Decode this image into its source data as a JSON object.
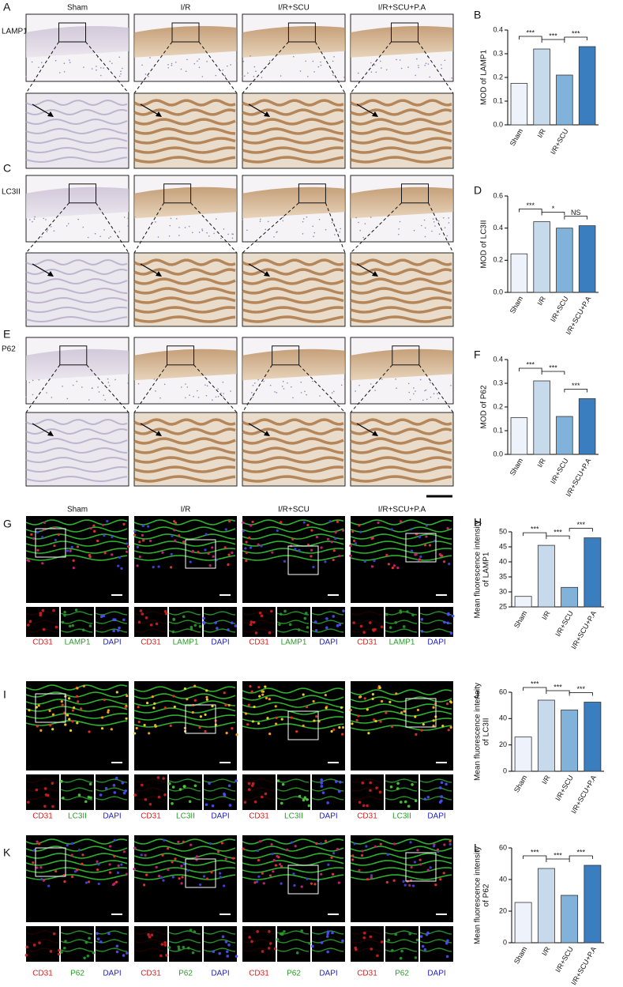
{
  "panels": [
    "A",
    "B",
    "C",
    "D",
    "E",
    "F",
    "G",
    "H",
    "I",
    "J",
    "K",
    "L"
  ],
  "groups": [
    "Sham",
    "I/R",
    "I/R+SCU",
    "I/R+SCU+P.A"
  ],
  "markers": [
    "LAMP1",
    "LC3II",
    "P62"
  ],
  "channels": [
    [
      "CD31",
      "LAMP1",
      "DAPI"
    ],
    [
      "CD31",
      "LC3II",
      "DAPI"
    ],
    [
      "CD31",
      "P62",
      "DAPI"
    ]
  ],
  "chart_data": [
    {
      "type": "bar",
      "ylabel": [
        "MOD of LAMP1"
      ],
      "categories": [
        "Sham",
        "I/R",
        "I/R+SCU",
        null
      ],
      "values": [
        0.175,
        0.32,
        0.21,
        0.33
      ],
      "colors": [
        "#eef3fb",
        "#c6daec",
        "#80b2da",
        "#3b7ec0"
      ],
      "ylim": [
        0,
        0.4
      ],
      "yticks": [
        {
          "value": 0,
          "label": "0.0"
        },
        0.1,
        0.2,
        0.3,
        0.4
      ],
      "annotations": [
        {
          "label": "***",
          "from": 0,
          "to": 1
        },
        {
          "label": "***",
          "from": 1,
          "to": 2
        },
        {
          "label": "***",
          "from": 2,
          "to": 3
        }
      ]
    },
    {
      "type": "bar",
      "ylabel": [
        "MOD of LC3II"
      ],
      "categories": [
        "Sham",
        "I/R",
        "I/R+SCU",
        "I/R+SCU+P.A"
      ],
      "values": [
        0.24,
        0.44,
        0.4,
        0.415
      ],
      "colors": [
        "#eef3fb",
        "#c6daec",
        "#80b2da",
        "#3b7ec0"
      ],
      "ylim": [
        0,
        0.6
      ],
      "yticks": [
        {
          "value": 0,
          "label": "0.0"
        },
        0.2,
        0.4,
        0.6
      ],
      "annotations": [
        {
          "label": "***",
          "from": 0,
          "to": 1
        },
        {
          "label": "*",
          "from": 1,
          "to": 2
        },
        {
          "label": "NS",
          "from": 2,
          "to": 3
        }
      ]
    },
    {
      "type": "bar",
      "ylabel": [
        "MOD of P62"
      ],
      "categories": [
        "Sham",
        "I/R",
        "I/R+SCU",
        "I/R+SCU+P.A"
      ],
      "values": [
        0.155,
        0.31,
        0.16,
        0.235
      ],
      "colors": [
        "#eef3fb",
        "#c6daec",
        "#80b2da",
        "#3b7ec0"
      ],
      "ylim": [
        0,
        0.4
      ],
      "yticks": [
        {
          "value": 0,
          "label": "0.0"
        },
        0.1,
        0.2,
        0.3,
        0.4
      ],
      "annotations": [
        {
          "label": "***",
          "from": 0,
          "to": 1
        },
        {
          "label": "***",
          "from": 1,
          "to": 2
        },
        {
          "label": "***",
          "from": 2,
          "to": 3
        }
      ]
    },
    {
      "type": "bar",
      "ylabel": [
        "Mean fluorescence intensity",
        "of LAMP1"
      ],
      "categories": [
        "Sham",
        "I/R",
        "I/R+SCU",
        "I/R+SCU+P.A"
      ],
      "values": [
        28.5,
        45.5,
        31.5,
        48
      ],
      "colors": [
        "#eef3fb",
        "#c6daec",
        "#80b2da",
        "#3b7ec0"
      ],
      "ylim": [
        25,
        50
      ],
      "yticks": [
        25,
        30,
        35,
        40,
        45,
        50
      ],
      "annotations": [
        {
          "label": "***",
          "from": 0,
          "to": 1
        },
        {
          "label": "***",
          "from": 1,
          "to": 2
        },
        {
          "label": "***",
          "from": 2,
          "to": 3
        }
      ]
    },
    {
      "type": "bar",
      "ylabel": [
        "Mean fluorescence intensity",
        "of LC3II"
      ],
      "categories": [
        "Sham",
        "I/R",
        "I/R+SCU",
        "I/R+SCU+P.A"
      ],
      "values": [
        26,
        54,
        46.5,
        52.5
      ],
      "colors": [
        "#eef3fb",
        "#c6daec",
        "#80b2da",
        "#3b7ec0"
      ],
      "ylim": [
        0,
        60
      ],
      "yticks": [
        0,
        20,
        40,
        60
      ],
      "annotations": [
        {
          "label": "***",
          "from": 0,
          "to": 1
        },
        {
          "label": "***",
          "from": 1,
          "to": 2
        },
        {
          "label": "***",
          "from": 2,
          "to": 3
        }
      ]
    },
    {
      "type": "bar",
      "ylabel": [
        "Mean fluorescence intensity",
        "of P62"
      ],
      "categories": [
        "Sham",
        "I/R",
        "I/R+SCU",
        "I/R+SCU+P.A"
      ],
      "values": [
        25.5,
        47,
        30,
        49
      ],
      "colors": [
        "#eef3fb",
        "#c6daec",
        "#80b2da",
        "#3b7ec0"
      ],
      "ylim": [
        0,
        60
      ],
      "yticks": [
        0,
        20,
        40,
        60
      ],
      "annotations": [
        {
          "label": "***",
          "from": 0,
          "to": 1
        },
        {
          "label": "***",
          "from": 1,
          "to": 2
        },
        {
          "label": "***",
          "from": 2,
          "to": 3
        }
      ]
    }
  ]
}
